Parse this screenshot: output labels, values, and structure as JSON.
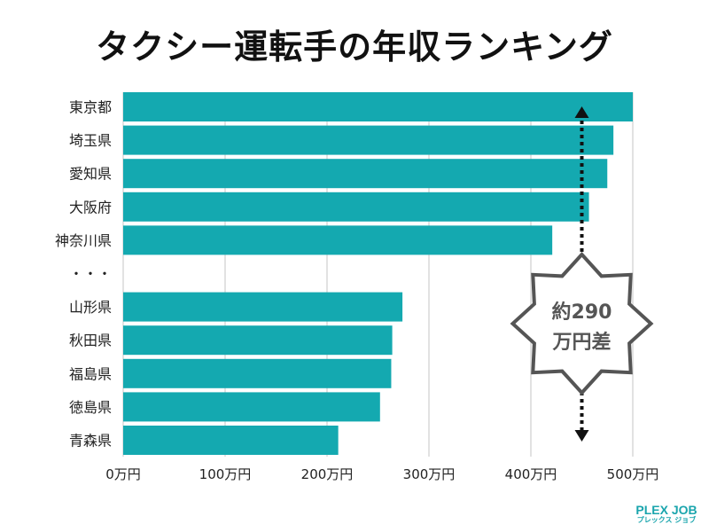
{
  "chart_data": {
    "type": "bar",
    "orientation": "horizontal",
    "title": "タクシー運転手の年収ランキング",
    "categories": [
      "東京都",
      "埼玉県",
      "愛知県",
      "大阪府",
      "神奈川県",
      "・・・",
      "山形県",
      "秋田県",
      "福島県",
      "徳島県",
      "青森県"
    ],
    "values": [
      500,
      481,
      475,
      457,
      421,
      null,
      274,
      264,
      263,
      252,
      211
    ],
    "unit": "万円",
    "xlim": [
      0,
      500
    ],
    "xticks": [
      0,
      100,
      200,
      300,
      400,
      500
    ],
    "xtick_labels": [
      "0万円",
      "100万円",
      "200万円",
      "300万円",
      "400万円",
      "500万円"
    ],
    "grid": true,
    "bar_color": "#14a9b0",
    "annotation": {
      "line1": "約290",
      "line2": "万円差",
      "x_value": 450
    }
  },
  "logo": {
    "text": "PLEX JOB",
    "subtext": "プレックス ジョブ"
  }
}
